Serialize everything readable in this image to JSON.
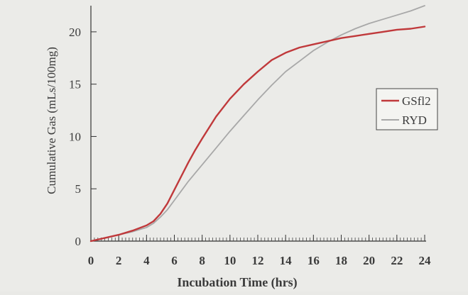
{
  "chart_data": {
    "type": "line",
    "title": "",
    "xlabel": "Incubation Time (hrs)",
    "ylabel": "Cumulative Gas (mLs/100mg)",
    "xlim": [
      0,
      24
    ],
    "ylim": [
      0,
      22.5
    ],
    "x_ticks": [
      0,
      2,
      4,
      6,
      8,
      10,
      12,
      14,
      16,
      18,
      20,
      22,
      24
    ],
    "y_ticks": [
      0,
      5,
      10,
      15,
      20
    ],
    "grid": false,
    "legend_position": "right",
    "series": [
      {
        "name": "GSfl2",
        "color": "#c0393b",
        "x": [
          0,
          1,
          2,
          3,
          4,
          4.5,
          5,
          5.5,
          6,
          6.5,
          7,
          7.5,
          8,
          9,
          10,
          11,
          12,
          13,
          14,
          15,
          16,
          17,
          18,
          19,
          20,
          21,
          22,
          23,
          24
        ],
        "y": [
          0,
          0.3,
          0.6,
          1.0,
          1.5,
          1.9,
          2.6,
          3.6,
          4.9,
          6.2,
          7.5,
          8.7,
          9.8,
          11.9,
          13.6,
          15.0,
          16.2,
          17.3,
          18.0,
          18.5,
          18.8,
          19.1,
          19.4,
          19.6,
          19.8,
          20.0,
          20.2,
          20.3,
          20.5
        ]
      },
      {
        "name": "RYD",
        "color": "#a8a8a8",
        "x": [
          0,
          1,
          2,
          3,
          4,
          4.5,
          5,
          5.5,
          6,
          6.5,
          7,
          7.5,
          8,
          9,
          10,
          11,
          12,
          13,
          14,
          15,
          16,
          17,
          18,
          19,
          20,
          21,
          22,
          23,
          24
        ],
        "y": [
          0,
          0.3,
          0.6,
          0.9,
          1.3,
          1.7,
          2.3,
          3.0,
          3.9,
          4.8,
          5.7,
          6.5,
          7.3,
          8.9,
          10.5,
          12.0,
          13.5,
          14.9,
          16.2,
          17.2,
          18.2,
          19.0,
          19.7,
          20.3,
          20.8,
          21.2,
          21.6,
          22.0,
          22.5
        ]
      }
    ]
  }
}
